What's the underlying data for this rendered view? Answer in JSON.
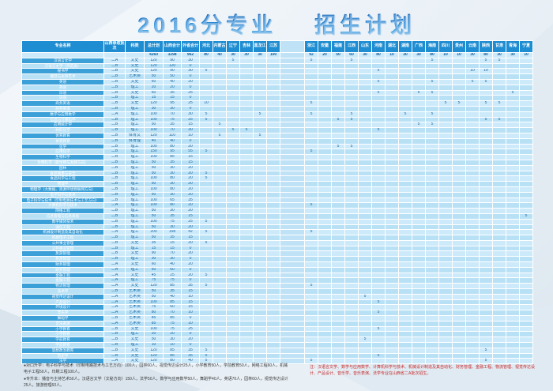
{
  "title": {
    "part1": "2016分专业",
    "part2": "招生计划"
  },
  "colors": {
    "header_bg": "#1e8dd2",
    "name_col_bg": "#3b9fd8",
    "row_light": "#cdeafb",
    "row_dark": "#b9e1f6",
    "title_blue": "#1a7ad4",
    "note_red": "#c62828"
  },
  "table": {
    "left_headers": [
      "专业名称",
      "山西录取批次",
      "科类",
      "总计划",
      "山西合计",
      "外省合计"
    ],
    "provinces_left": [
      "河北",
      "内蒙古",
      "辽宁",
      "吉林",
      "黑龙江",
      "江苏"
    ],
    "provinces_right": [
      "浙江",
      "安徽",
      "福建",
      "江西",
      "山东",
      "河南",
      "湖北",
      "湖南",
      "广西",
      "海南",
      "四川",
      "贵州",
      "云南",
      "陕西",
      "甘肃",
      "青海",
      "宁夏"
    ],
    "total_row": {
      "total": 4260,
      "sx": 3298,
      "ws": 962,
      "prov": {
        "河北": 80,
        "内蒙古": 40,
        "辽宁": 30,
        "吉林": 30,
        "黑龙江": 30,
        "江苏": 100,
        "浙江": 92,
        "安徽": 20,
        "福建": 50,
        "江西": 60,
        "山东": 30,
        "河南": 80,
        "湖北": 10,
        "湖南": 30,
        "广西": 30,
        "海南": 80,
        "四川": 10,
        "贵州": 10,
        "云南": 30,
        "陕西": 80,
        "甘肃": 30,
        "青海": 30,
        "宁夏": 10
      }
    },
    "rows": [
      {
        "name": "汉语言文学",
        "batch": "二A",
        "type": "文史",
        "total": 120,
        "sx": 90,
        "ws": 30,
        "prov": {
          "辽宁": 5,
          "浙江": 5,
          "江西": 5,
          "海南": 5,
          "陕西": 5,
          "甘肃": 5
        }
      },
      {
        "name": "汉语言文学（师范类）",
        "batch": "二B",
        "type": "文史",
        "total": 120,
        "sx": 120,
        "ws": 0,
        "prov": {}
      },
      {
        "name": "秘书学",
        "batch": "二B",
        "type": "文史",
        "total": 120,
        "sx": 90,
        "ws": 30,
        "prov": {
          "河北": 5,
          "河南": 5,
          "云南": 10,
          "陕西": 10
        }
      },
      {
        "name": "播音与主持艺术",
        "batch": "二B",
        "type": "艺术类",
        "total": 50,
        "sx": 50,
        "ws": 0,
        "prov": {}
      },
      {
        "name": "英语",
        "batch": "二B",
        "type": "文史",
        "total": 60,
        "sx": 40,
        "ws": 20,
        "prov": {
          "河南": 5,
          "海南": 5,
          "云南": 5,
          "陕西": 5
        }
      },
      {
        "name": "英语",
        "batch": "二B",
        "type": "理工",
        "total": 20,
        "sx": 20,
        "ws": 0,
        "prov": {}
      },
      {
        "name": "日语",
        "batch": "二B",
        "type": "文史",
        "total": 60,
        "sx": 35,
        "ws": 25,
        "prov": {
          "河南": 5,
          "广西": 5,
          "海南": 5,
          "青海": 5
        }
      },
      {
        "name": "日语",
        "batch": "二B",
        "type": "理工",
        "total": 15,
        "sx": 15,
        "ws": 0,
        "prov": {}
      },
      {
        "name": "商务英语",
        "batch": "二B",
        "type": "文史",
        "total": 120,
        "sx": 95,
        "ws": 25,
        "prov": {
          "河北": 10,
          "浙江": 5,
          "四川": 5,
          "贵州": 5,
          "陕西": 5,
          "甘肃": 5
        }
      },
      {
        "name": "商务英语",
        "batch": "二B",
        "type": "理工",
        "total": 30,
        "sx": 30,
        "ws": 0,
        "prov": {}
      },
      {
        "name": "数学与应用数学",
        "batch": "二A",
        "type": "理工",
        "total": 100,
        "sx": 70,
        "ws": 30,
        "prov": {
          "河北": 5,
          "黑龙江": 5,
          "浙江": 5,
          "江西": 5,
          "湖南": 5,
          "海南": 5
        }
      },
      {
        "name": "信息与计算科学",
        "batch": "二B",
        "type": "理工",
        "total": 100,
        "sx": 75,
        "ws": 25,
        "prov": {
          "河北": 5,
          "福建": 5,
          "江西": 5,
          "陕西": 5,
          "甘肃": 5
        }
      },
      {
        "name": "应用统计学",
        "batch": "二B",
        "type": "理工",
        "total": 50,
        "sx": 35,
        "ws": 15,
        "prov": {
          "内蒙古": 5,
          "广西": 5,
          "海南": 5
        }
      },
      {
        "name": "材料化学",
        "batch": "二B",
        "type": "理工",
        "total": 100,
        "sx": 70,
        "ws": 30,
        "prov": {
          "辽宁": 5,
          "吉林": 5,
          "河南": 5
        }
      },
      {
        "name": "体育教育",
        "batch": "二B",
        "type": "体育文",
        "total": 120,
        "sx": 110,
        "ws": 10,
        "prov": {
          "内蒙古": 5,
          "黑龙江": 5
        }
      },
      {
        "name": "体育教育",
        "batch": "二B",
        "type": "体育理",
        "total": 40,
        "sx": 40,
        "ws": 0,
        "prov": {}
      },
      {
        "name": "化学",
        "batch": "二B",
        "type": "理工",
        "total": 100,
        "sx": 80,
        "ws": 20,
        "prov": {
          "福建": 5,
          "江西": 5
        }
      },
      {
        "name": "应用化学",
        "batch": "二B",
        "type": "理工",
        "total": 150,
        "sx": 95,
        "ws": 55,
        "prov": {
          "河北": 5,
          "浙江": 5
        }
      },
      {
        "name": "生物科学",
        "batch": "二B",
        "type": "理工",
        "total": 100,
        "sx": 85,
        "ws": 15,
        "prov": {}
      },
      {
        "name": "生物科学（微生物与发酵方向）",
        "batch": "二B",
        "type": "理工",
        "total": 50,
        "sx": 35,
        "ws": 15,
        "prov": {}
      },
      {
        "name": "园林",
        "batch": "二B",
        "type": "理工",
        "total": 50,
        "sx": 30,
        "ws": 20,
        "prov": {}
      },
      {
        "name": "食品质量与安全",
        "batch": "二B",
        "type": "理工",
        "total": 50,
        "sx": 30,
        "ws": 20,
        "prov": {
          "河北": 5
        }
      },
      {
        "name": "食品科学与工程",
        "batch": "二B",
        "type": "理工",
        "total": 100,
        "sx": 80,
        "ws": 20,
        "prov": {
          "河北": 5
        }
      },
      {
        "name": "物理学",
        "batch": "二B",
        "type": "理工",
        "total": 50,
        "sx": 30,
        "ws": 20,
        "prov": {}
      },
      {
        "name": "物理学（大数据、资源环境物联网方向）",
        "batch": "二B",
        "type": "理工",
        "total": 100,
        "sx": 80,
        "ws": 20,
        "prov": {}
      },
      {
        "name": "电子科学与技术",
        "batch": "二B",
        "type": "理工",
        "total": 50,
        "sx": 30,
        "ws": 20,
        "prov": {}
      },
      {
        "name": "电子科学与技术（印制电路技术与工艺方向）",
        "batch": "二B",
        "type": "理工",
        "total": 100,
        "sx": 65,
        "ws": 35,
        "prov": {}
      },
      {
        "name": "计算机科学与技术",
        "batch": "二A",
        "type": "理工",
        "total": 100,
        "sx": 80,
        "ws": 20,
        "prov": {
          "浙江": 5
        }
      },
      {
        "name": "网络工程",
        "batch": "二B",
        "type": "理工",
        "total": 50,
        "sx": 30,
        "ws": 20,
        "prov": {}
      },
      {
        "name": "信息管理与信息系统",
        "batch": "二B",
        "type": "理工",
        "total": 50,
        "sx": 35,
        "ws": 15,
        "prov": {
          "宁夏": 5
        }
      },
      {
        "name": "数字媒体技术",
        "batch": "二B",
        "type": "理工",
        "total": 100,
        "sx": 75,
        "ws": 25,
        "prov": {
          "河北": 5
        }
      },
      {
        "name": "通信工程",
        "batch": "二B",
        "type": "理工",
        "total": 50,
        "sx": 30,
        "ws": 20,
        "prov": {}
      },
      {
        "name": "机械设计制造及其自动化",
        "batch": "二A",
        "type": "理工",
        "total": 200,
        "sx": 158,
        "ws": 42,
        "prov": {
          "河北": 5,
          "浙江": 5
        }
      },
      {
        "name": "机械电子工程",
        "batch": "二B",
        "type": "理工",
        "total": 50,
        "sx": 35,
        "ws": 15,
        "prov": {}
      },
      {
        "name": "公共事业管理",
        "batch": "二B",
        "type": "文史",
        "total": 35,
        "sx": 15,
        "ws": 20,
        "prov": {
          "河北": 5
        }
      },
      {
        "name": "公共事业管理",
        "batch": "二B",
        "type": "理工",
        "total": 15,
        "sx": 15,
        "ws": 0,
        "prov": {}
      },
      {
        "name": "旅游管理",
        "batch": "二B",
        "type": "文史",
        "total": 90,
        "sx": 70,
        "ws": 20,
        "prov": {}
      },
      {
        "name": "旅游管理",
        "batch": "二B",
        "type": "理工",
        "total": 30,
        "sx": 30,
        "ws": 0,
        "prov": {}
      },
      {
        "name": "财务管理",
        "batch": "二A",
        "type": "文史",
        "total": 60,
        "sx": 40,
        "ws": 20,
        "prov": {}
      },
      {
        "name": "财务管理",
        "batch": "二A",
        "type": "理工",
        "total": 60,
        "sx": 60,
        "ws": 0,
        "prov": {}
      },
      {
        "name": "金融工程",
        "batch": "二A",
        "type": "文史",
        "total": 45,
        "sx": 25,
        "ws": 20,
        "prov": {
          "河北": 5
        }
      },
      {
        "name": "金融工程",
        "batch": "二A",
        "type": "理工",
        "total": 75,
        "sx": 75,
        "ws": 0,
        "prov": {}
      },
      {
        "name": "物流管理",
        "batch": "二A",
        "type": "文史",
        "total": 120,
        "sx": 85,
        "ws": 35,
        "prov": {
          "河北": 5,
          "浙江": 5
        }
      },
      {
        "name": "美术学",
        "batch": "二B",
        "type": "艺术类",
        "total": 50,
        "sx": 35,
        "ws": 15,
        "prov": {}
      },
      {
        "name": "视觉传达设计",
        "batch": "二A",
        "type": "艺术类",
        "total": 50,
        "sx": 40,
        "ws": 10,
        "prov": {
          "山东": 5
        }
      },
      {
        "name": "产品设计",
        "batch": "二A",
        "type": "艺术类",
        "total": 100,
        "sx": 85,
        "ws": 15,
        "prov": {
          "河南": 5
        }
      },
      {
        "name": "环境设计",
        "batch": "二A",
        "type": "艺术类",
        "total": 75,
        "sx": 60,
        "ws": 15,
        "prov": {}
      },
      {
        "name": "音乐学",
        "batch": "二A",
        "type": "艺术类",
        "total": 80,
        "sx": 70,
        "ws": 10,
        "prov": {
          "河南": 5
        }
      },
      {
        "name": "舞蹈学",
        "batch": "二B",
        "type": "艺术类",
        "total": 85,
        "sx": 85,
        "ws": 0,
        "prov": {}
      },
      {
        "name": "音乐表演",
        "batch": "二A",
        "type": "艺术类",
        "total": 85,
        "sx": 75,
        "ws": 10,
        "prov": {}
      },
      {
        "name": "小学教育",
        "batch": "二B",
        "type": "文史",
        "total": 100,
        "sx": 75,
        "ws": 25,
        "prov": {
          "河南": 5
        }
      },
      {
        "name": "小学教育",
        "batch": "二B",
        "type": "理工",
        "total": 20,
        "sx": 20,
        "ws": 0,
        "prov": {}
      },
      {
        "name": "学前教育",
        "batch": "二B",
        "type": "文史",
        "total": 50,
        "sx": 30,
        "ws": 20,
        "prov": {
          "山东": 5
        }
      },
      {
        "name": "学前教育",
        "batch": "二B",
        "type": "理工",
        "total": 10,
        "sx": 10,
        "ws": 0,
        "prov": {}
      },
      {
        "name": "思想政治教育",
        "batch": "二B",
        "type": "文史",
        "total": 120,
        "sx": 85,
        "ws": 35,
        "prov": {
          "河北": 5,
          "陕西": 5
        }
      },
      {
        "name": "历史学",
        "batch": "二B",
        "type": "文史",
        "total": 120,
        "sx": 85,
        "ws": 35,
        "prov": {
          "河北": 5,
          "河南": 5
        }
      },
      {
        "name": "法学",
        "batch": "二A",
        "type": "文史",
        "total": 120,
        "sx": 80,
        "ws": 40,
        "prov": {
          "河北": 5,
          "浙江": 5,
          "陕西": 5
        }
      }
    ]
  },
  "footnotes": {
    "line1": "●对口升学：电子科学与技术（印制电路技术与工艺方向）100人，园林60人，视觉传达设计25人，小学教育50人，学前教育50人，网络工程60人，机械电子工程50人，印刷工程100人。",
    "line2": "●专升本：播音与主持艺术50人，汉语言文学（文秘方向）150人，法学50人，数学与应用数学50人，舞蹈学40人，英语70人，园林60人，视觉传达设计25人，旅游管理60人。",
    "note": "注：汉语言文学、数学与应用数学、计算机科学与技术、机械设计制造及其自动化、财务管理、金融工程、物流管理、视觉传达设计、产品设计、音乐学、音乐表演、法学专业在山西省二A批次招生。"
  }
}
